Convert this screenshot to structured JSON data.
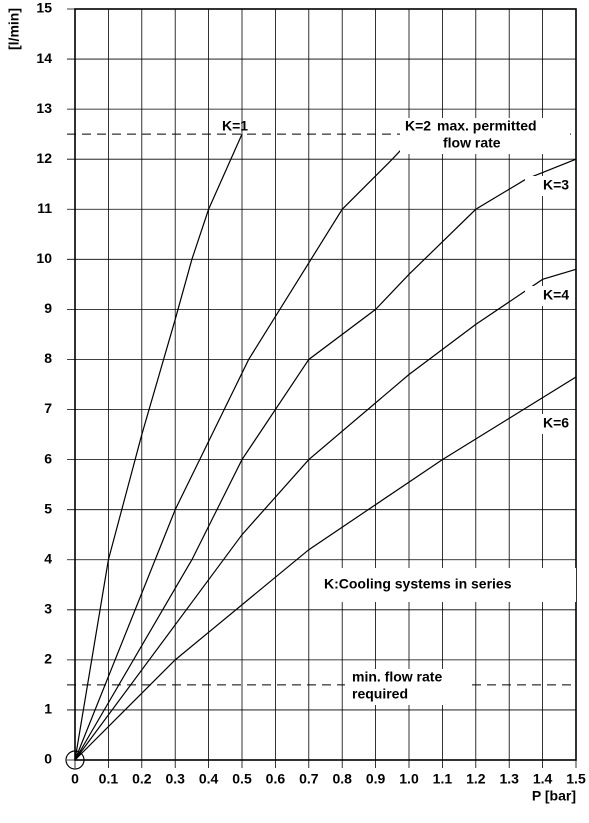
{
  "chart_data": {
    "type": "line",
    "ylabel": "[l/min]",
    "xlabel": "P [bar]",
    "xlim": [
      0,
      1.5
    ],
    "ylim": [
      0,
      15
    ],
    "xticks": [
      0,
      0.1,
      0.2,
      0.3,
      0.4,
      0.5,
      0.6,
      0.7,
      0.8,
      0.9,
      {
        "value": 1,
        "label": "1.0"
      },
      1.1,
      1.2,
      1.3,
      1.4,
      1.5
    ],
    "yticks": [
      0,
      1,
      2,
      3,
      4,
      5,
      6,
      7,
      8,
      9,
      10,
      11,
      12,
      13,
      14,
      15
    ],
    "grid": true,
    "hlines": [
      12.5,
      1.5
    ],
    "series": [
      {
        "name": "K=1",
        "color": "#000000",
        "x": [
          0,
          0.1,
          0.2,
          0.3,
          0.35,
          0.4,
          0.5
        ],
        "values": [
          0,
          4,
          6.5,
          8.8,
          10,
          11,
          12.5
        ]
      },
      {
        "name": "K=2",
        "color": "#000000",
        "x": [
          0,
          0.3,
          0.52,
          0.8,
          0.95,
          1.02
        ],
        "values": [
          0,
          5,
          8,
          11,
          12,
          12.5
        ]
      },
      {
        "name": "K=3",
        "color": "#000000",
        "x": [
          0,
          0.35,
          0.5,
          0.7,
          0.9,
          1.0,
          1.2,
          1.35,
          1.5
        ],
        "values": [
          0,
          4,
          6,
          8,
          9,
          9.7,
          11,
          11.6,
          12
        ]
      },
      {
        "name": "K=4",
        "color": "#000000",
        "x": [
          0,
          0.5,
          0.7,
          1.0,
          1.2,
          1.4,
          1.5
        ],
        "values": [
          0,
          4.5,
          6,
          7.7,
          8.7,
          9.6,
          9.8
        ]
      },
      {
        "name": "K=6",
        "color": "#000000",
        "x": [
          0,
          0.3,
          0.7,
          1.1,
          1.5
        ],
        "values": [
          0,
          2,
          4.2,
          6,
          7.65
        ]
      }
    ],
    "annotations": [
      "max. permitted",
      "flow rate",
      "K:Cooling systems in series",
      "min. flow rate",
      "required"
    ]
  }
}
